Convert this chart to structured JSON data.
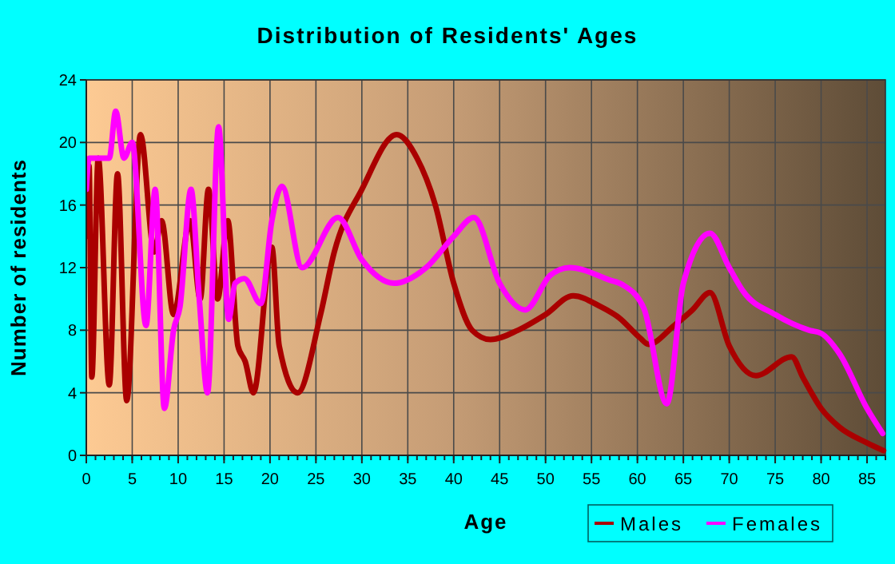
{
  "chart_data": {
    "type": "line",
    "title": "Distribution of Residents' Ages",
    "xlabel": "Age",
    "ylabel": "Number of residents",
    "xlim": [
      0,
      87
    ],
    "xticks": [
      0,
      5,
      10,
      15,
      20,
      25,
      30,
      35,
      40,
      45,
      50,
      55,
      60,
      65,
      70,
      75,
      80,
      85
    ],
    "ylim": [
      0,
      24
    ],
    "yticks": [
      0,
      4,
      8,
      12,
      16,
      20,
      24
    ],
    "grid": true,
    "legend": "bottom right",
    "series": [
      {
        "name": "Males",
        "color": "#aa0000",
        "x": [
          0,
          0.3,
          0.6,
          1.3,
          2.5,
          3.4,
          4.4,
          5.9,
          7.4,
          8.2,
          9.5,
          11.3,
          12.4,
          13.3,
          14.3,
          15.4,
          16.5,
          17.3,
          18.2,
          20.2,
          21,
          23,
          25.5,
          27,
          30,
          33.8,
          36,
          38,
          40,
          42,
          44,
          47,
          50,
          53,
          56,
          58,
          60.3,
          61.2,
          64,
          66,
          67.9,
          70,
          72.9,
          76.8,
          78,
          80,
          82,
          85,
          86.8
        ],
        "values": [
          14,
          18.5,
          5,
          19,
          4.5,
          18,
          3.5,
          20.5,
          13,
          15,
          9,
          15,
          10,
          17,
          10,
          15,
          7,
          6,
          4,
          13.3,
          7,
          4,
          9,
          13,
          17,
          20.5,
          19,
          16,
          11,
          8,
          7.4,
          8,
          9,
          10.2,
          9.5,
          8.8,
          7.5,
          7.1,
          8.3,
          9.3,
          10.4,
          7,
          5.1,
          6.3,
          5,
          3,
          1.8,
          0.8,
          0.3
        ]
      },
      {
        "name": "Females",
        "color": "#ff00ff",
        "x": [
          0,
          0.3,
          1.2,
          2.5,
          3.2,
          4.1,
          5,
          6.5,
          7.5,
          8.5,
          9.5,
          10.2,
          11.4,
          12.3,
          13.2,
          14.4,
          15.5,
          16.2,
          17.2,
          19,
          20.2,
          21.3,
          23.5,
          27.4,
          30,
          33.5,
          37,
          40,
          42.2,
          45,
          47.8,
          50.5,
          52.6,
          57,
          58.4,
          60.7,
          63.2,
          65,
          67.9,
          70,
          71.5,
          75,
          78.7,
          80,
          82,
          85,
          86.7
        ],
        "values": [
          17,
          19,
          19,
          19,
          22,
          19,
          20,
          8.3,
          17,
          3,
          8,
          9.5,
          17,
          10,
          4,
          21,
          8.7,
          11,
          11.3,
          9.7,
          15,
          17.2,
          12,
          15.2,
          12.5,
          11,
          12,
          14,
          15.2,
          11,
          9.3,
          11.5,
          12,
          11.2,
          10.9,
          9.4,
          3.3,
          11,
          14.2,
          12,
          10.5,
          9,
          8,
          7.8,
          6.5,
          3,
          1.4
        ]
      }
    ]
  }
}
